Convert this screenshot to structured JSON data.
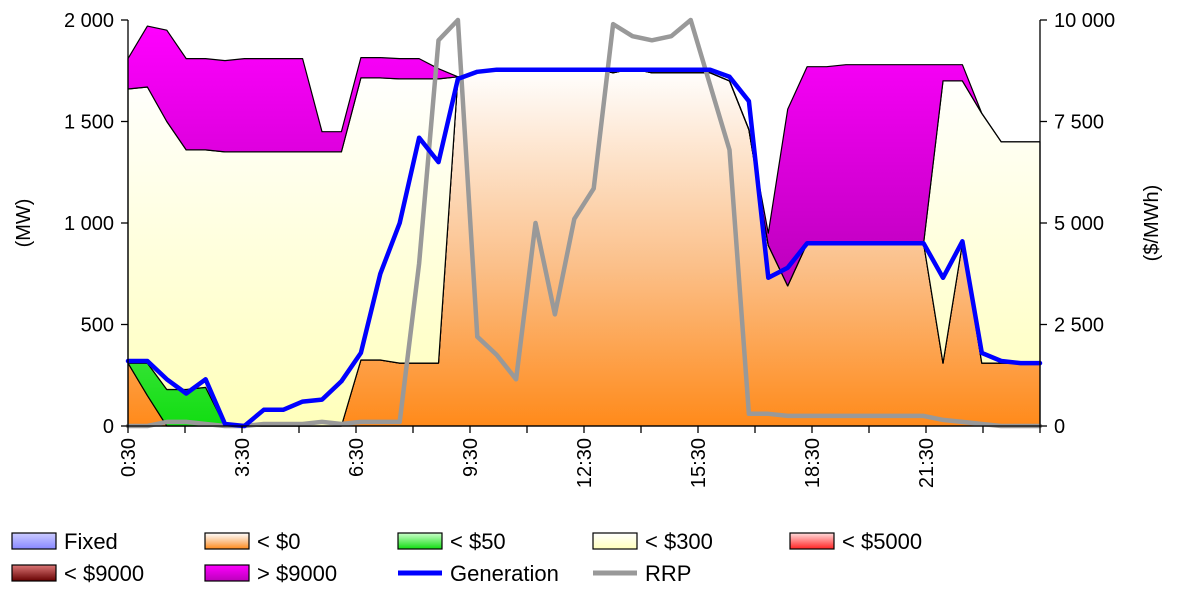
{
  "chart_data": {
    "type": "area",
    "x_tick_labels": [
      "0:30",
      "3:30",
      "6:30",
      "9:30",
      "12:30",
      "15:30",
      "18:30",
      "21:30"
    ],
    "x": [
      "0:30",
      "1:00",
      "1:30",
      "2:00",
      "2:30",
      "3:00",
      "3:30",
      "4:00",
      "4:30",
      "5:00",
      "5:30",
      "6:00",
      "6:30",
      "7:00",
      "7:30",
      "8:00",
      "8:30",
      "9:00",
      "9:30",
      "10:00",
      "10:30",
      "11:00",
      "11:30",
      "12:00",
      "12:30",
      "13:00",
      "13:30",
      "14:00",
      "14:30",
      "15:00",
      "15:30",
      "16:00",
      "16:30",
      "17:00",
      "17:30",
      "18:00",
      "18:30",
      "19:00",
      "19:30",
      "20:00",
      "20:30",
      "21:00",
      "21:30",
      "22:00",
      "22:30",
      "23:00",
      "23:30",
      "0:00"
    ],
    "ylabel": "(MW)",
    "y2label": "($/MWh)",
    "ylim": [
      0,
      2000
    ],
    "y2lim": [
      0,
      10000
    ],
    "y_tick_labels": [
      "0",
      "500",
      "1 000",
      "1 500",
      "2 000"
    ],
    "y2_tick_labels": [
      "0",
      "2 500",
      "5 000",
      "7 500",
      "10 000"
    ],
    "legend_position": "bottom",
    "stacked_series": [
      {
        "name": "Fixed",
        "color": "#9999ff",
        "values": [
          0,
          0,
          0,
          0,
          0,
          0,
          0,
          0,
          0,
          0,
          0,
          0,
          0,
          0,
          0,
          0,
          0,
          0,
          0,
          0,
          0,
          0,
          0,
          0,
          0,
          0,
          0,
          0,
          0,
          0,
          0,
          0,
          0,
          0,
          0,
          0,
          0,
          0,
          0,
          0,
          0,
          0,
          0,
          0,
          0,
          0,
          0,
          0
        ]
      },
      {
        "name": "< $0",
        "color": "#ff9933",
        "values": [
          310,
          150,
          0,
          0,
          0,
          0,
          0,
          0,
          0,
          0,
          0,
          0,
          325,
          325,
          310,
          310,
          310,
          1720,
          1740,
          1750,
          1760,
          1760,
          1760,
          1760,
          1760,
          1740,
          1760,
          1740,
          1740,
          1740,
          1740,
          1700,
          1460,
          890,
          690,
          900,
          900,
          900,
          900,
          900,
          900,
          900,
          310,
          900,
          310,
          310,
          310,
          310
        ]
      },
      {
        "name": "< $50",
        "color": "#33ee33",
        "values": [
          0,
          160,
          180,
          180,
          190,
          0,
          0,
          0,
          0,
          0,
          0,
          0,
          0,
          0,
          0,
          0,
          0,
          0,
          0,
          0,
          0,
          0,
          0,
          0,
          0,
          0,
          0,
          0,
          0,
          0,
          0,
          0,
          0,
          0,
          0,
          0,
          0,
          0,
          0,
          0,
          0,
          0,
          0,
          0,
          0,
          0,
          0,
          0
        ]
      },
      {
        "name": "< $300",
        "color": "#ffffcc",
        "values": [
          1350,
          1360,
          1320,
          1180,
          1170,
          1350,
          1350,
          1350,
          1350,
          1350,
          1350,
          1350,
          1390,
          1390,
          1400,
          1400,
          1400,
          0,
          0,
          0,
          0,
          0,
          0,
          0,
          0,
          0,
          0,
          0,
          0,
          0,
          0,
          0,
          0,
          0,
          0,
          0,
          0,
          0,
          0,
          0,
          0,
          0,
          1390,
          800,
          1230,
          1090,
          1090,
          1090
        ]
      },
      {
        "name": "< $5000",
        "color": "#ff3333",
        "values": [
          0,
          0,
          0,
          0,
          0,
          0,
          0,
          0,
          0,
          0,
          0,
          0,
          0,
          0,
          0,
          0,
          0,
          0,
          0,
          0,
          0,
          0,
          0,
          0,
          0,
          0,
          0,
          0,
          0,
          0,
          0,
          0,
          0,
          0,
          0,
          0,
          0,
          0,
          0,
          0,
          0,
          0,
          0,
          0,
          0,
          0,
          0,
          0
        ]
      },
      {
        "name": "< $9000",
        "color": "#cc0000",
        "values": [
          0,
          0,
          0,
          0,
          0,
          0,
          0,
          0,
          0,
          0,
          0,
          0,
          0,
          0,
          0,
          0,
          0,
          0,
          0,
          0,
          0,
          0,
          0,
          0,
          0,
          0,
          0,
          0,
          0,
          0,
          0,
          0,
          0,
          0,
          0,
          0,
          0,
          0,
          0,
          0,
          0,
          0,
          0,
          0,
          0,
          0,
          0,
          0
        ]
      },
      {
        "name": "> $9000",
        "color": "#cc00cc",
        "values": [
          150,
          300,
          450,
          450,
          450,
          450,
          460,
          460,
          460,
          460,
          100,
          100,
          100,
          100,
          100,
          100,
          50,
          0,
          0,
          0,
          0,
          0,
          0,
          0,
          0,
          0,
          0,
          0,
          0,
          0,
          0,
          0,
          0,
          60,
          870,
          870,
          870,
          880,
          880,
          880,
          880,
          880,
          80,
          80,
          0,
          0,
          0,
          0
        ]
      }
    ],
    "line_series": [
      {
        "name": "Generation",
        "axis": "left",
        "color": "#0000ff",
        "values": [
          320,
          320,
          230,
          160,
          230,
          10,
          0,
          80,
          80,
          120,
          130,
          220,
          360,
          750,
          1000,
          1420,
          1300,
          1710,
          1745,
          1755,
          1755,
          1755,
          1755,
          1755,
          1755,
          1755,
          1755,
          1755,
          1755,
          1755,
          1755,
          1720,
          1600,
          730,
          780,
          900,
          900,
          900,
          900,
          900,
          900,
          900,
          730,
          910,
          360,
          320,
          310,
          310
        ]
      },
      {
        "name": "RRP",
        "axis": "right",
        "color": "#999999",
        "values": [
          0,
          0,
          100,
          100,
          50,
          0,
          0,
          50,
          50,
          50,
          100,
          50,
          100,
          100,
          100,
          4000,
          9500,
          10000,
          2200,
          1750,
          1150,
          5000,
          2750,
          5100,
          5850,
          9900,
          9600,
          9500,
          9600,
          10000,
          8400,
          6800,
          300,
          300,
          250,
          250,
          250,
          250,
          250,
          250,
          250,
          250,
          150,
          100,
          50,
          0,
          0,
          0
        ]
      }
    ],
    "legend": [
      "Fixed",
      "< $0",
      "< $50",
      "< $300",
      "< $5000",
      "< $9000",
      "> $9000",
      "Generation",
      "RRP"
    ]
  }
}
